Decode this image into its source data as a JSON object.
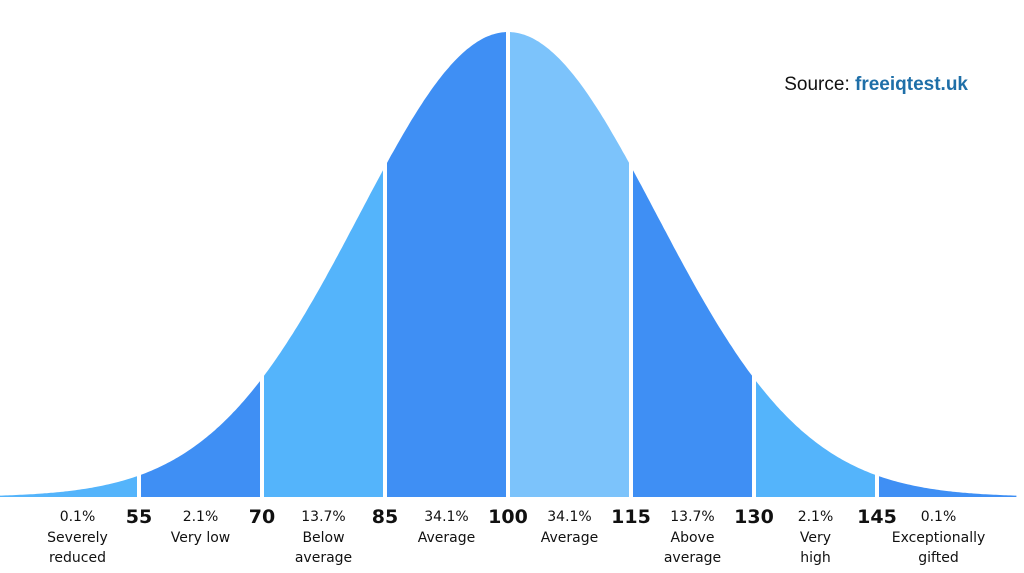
{
  "chart_data": {
    "type": "area",
    "title": "",
    "xlabel": "",
    "ylabel": "",
    "tick_labels": [
      "55",
      "70",
      "85",
      "100",
      "115",
      "130",
      "145"
    ],
    "xlim": [
      40,
      160
    ],
    "mean": 100,
    "std": 15,
    "segments": [
      {
        "range": [
          40,
          55
        ],
        "percent": "0.1%",
        "label": "Severely reduced",
        "lines": [
          "Severely",
          "reduced"
        ],
        "color": "#54b4fb"
      },
      {
        "range": [
          55,
          70
        ],
        "percent": "2.1%",
        "label": "Very low",
        "lines": [
          "Very low"
        ],
        "color": "#3f8ff4"
      },
      {
        "range": [
          70,
          85
        ],
        "percent": "13.7%",
        "label": "Below average",
        "lines": [
          "Below",
          "average"
        ],
        "color": "#54b4fb"
      },
      {
        "range": [
          85,
          100
        ],
        "percent": "34.1%",
        "label": "Average",
        "lines": [
          "Average"
        ],
        "color": "#3f8ff4"
      },
      {
        "range": [
          100,
          115
        ],
        "percent": "34.1%",
        "label": "Average",
        "lines": [
          "Average"
        ],
        "color": "#7cc3fb"
      },
      {
        "range": [
          115,
          130
        ],
        "percent": "13.7%",
        "label": "Above average",
        "lines": [
          "Above",
          "average"
        ],
        "color": "#3f8ff4"
      },
      {
        "range": [
          130,
          145
        ],
        "percent": "2.1%",
        "label": "Very high",
        "lines": [
          "Very",
          "high"
        ],
        "color": "#54b4fb"
      },
      {
        "range": [
          145,
          160
        ],
        "percent": "0.1%",
        "label": "Exceptionally gifted",
        "lines": [
          "Exceptionally",
          "gifted"
        ],
        "color": "#3f8ff4"
      }
    ],
    "grid": false,
    "legend": "none"
  },
  "source": {
    "prefix": "Source:",
    "link": "freeiqtest.uk"
  }
}
